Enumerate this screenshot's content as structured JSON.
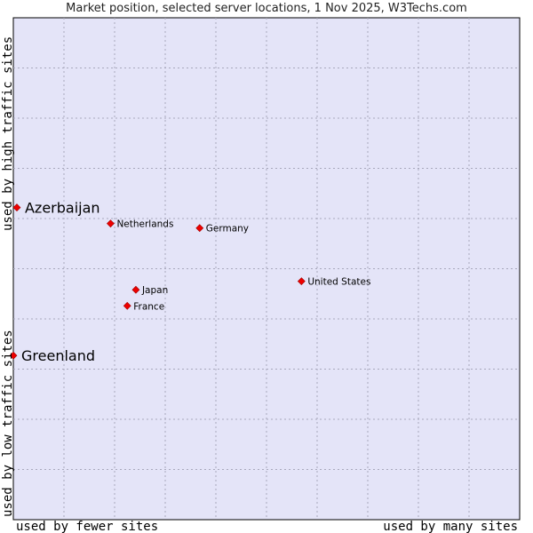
{
  "chart_data": {
    "type": "scatter",
    "title": "Market position, selected server locations, 1 Nov 2025, W3Techs.com",
    "xlabel_left": "used by fewer sites",
    "xlabel_right": "used by many sites",
    "ylabel_bottom": "used by low traffic sites",
    "ylabel_top": "used by high traffic sites",
    "grid": true,
    "xlim": [
      0,
      100
    ],
    "ylim": [
      0,
      100
    ],
    "points": [
      {
        "label": "Azerbaijan",
        "x": 0.7,
        "y": 62.2,
        "emphasis": true
      },
      {
        "label": "Greenland",
        "x": 0.0,
        "y": 32.7,
        "emphasis": true
      },
      {
        "label": "Netherlands",
        "x": 19.2,
        "y": 59.0,
        "emphasis": false
      },
      {
        "label": "Germany",
        "x": 36.8,
        "y": 58.1,
        "emphasis": false
      },
      {
        "label": "United States",
        "x": 56.9,
        "y": 47.5,
        "emphasis": false
      },
      {
        "label": "Japan",
        "x": 24.2,
        "y": 45.8,
        "emphasis": false
      },
      {
        "label": "France",
        "x": 22.5,
        "y": 42.6,
        "emphasis": false
      }
    ],
    "colors": {
      "plot_bg": "#e4e4f8",
      "grid": "#a8a8bc",
      "marker": "#ee0000"
    }
  }
}
